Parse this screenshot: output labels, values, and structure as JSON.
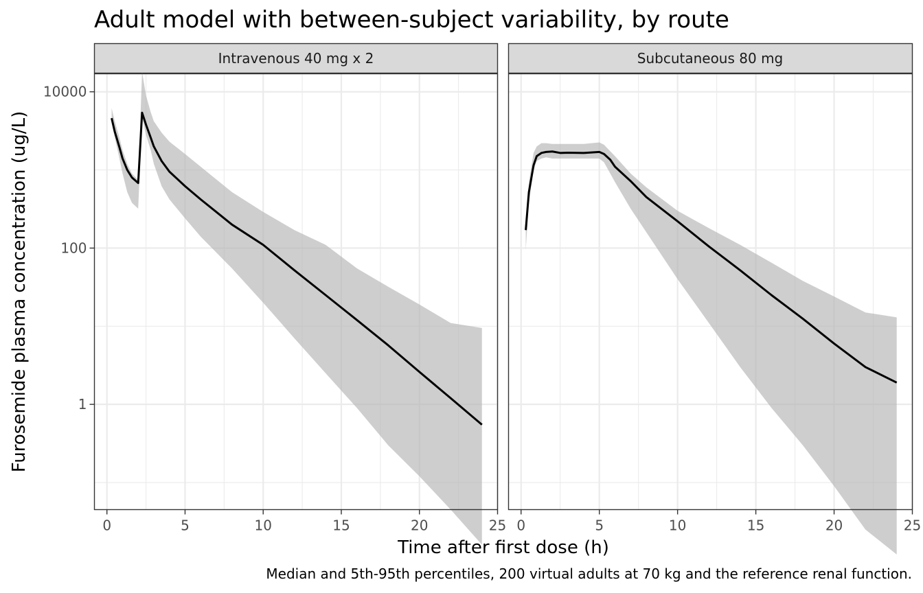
{
  "chart_data": {
    "type": "line",
    "title": "Adult model with between-subject variability, by route",
    "xlabel": "Time after first dose (h)",
    "ylabel": "Furosemide plasma concentration (ug/L)",
    "caption": "Median and 5th-95th percentiles, 200 virtual adults at 70 kg and the reference renal function.",
    "x_scale": "linear",
    "y_scale": "log10",
    "xlim": [
      -0.8,
      25
    ],
    "ylim": [
      0.045,
      17000
    ],
    "x_ticks": [
      0,
      5,
      10,
      15,
      20,
      25
    ],
    "x_tick_labels": [
      "0",
      "5",
      "10",
      "15",
      "20",
      "25"
    ],
    "y_ticks": [
      1,
      100,
      10000
    ],
    "y_tick_labels": [
      "1",
      "100",
      "10000"
    ],
    "grid": true,
    "panels": [
      {
        "strip": "Intravenous 40 mg x 2",
        "series": [
          {
            "type": "ribbon",
            "x": [
              0.3,
              0.5,
              0.8,
              1.0,
              1.3,
              1.6,
              2.0,
              2.25,
              2.5,
              2.8,
              3.0,
              3.5,
              4.0,
              5.0,
              6.0,
              8.0,
              10.0,
              12.0,
              14.0,
              16.0,
              18.0,
              20.0,
              22.0,
              24.0
            ],
            "lower": [
              4000,
              2600,
              1400,
              900,
              520,
              380,
              320,
              4800,
              2800,
              1800,
              1200,
              620,
              420,
              240,
              140,
              55,
              20,
              7,
              2.5,
              0.9,
              0.3,
              0.12,
              0.045,
              0.016
            ],
            "upper": [
              6200,
              4200,
              2600,
              1800,
              1200,
              900,
              750,
              18000,
              9000,
              5500,
              4200,
              3000,
              2300,
              1600,
              1100,
              520,
              290,
              170,
              110,
              55,
              32,
              19,
              11,
              9.5
            ]
          },
          {
            "type": "line",
            "name": "median",
            "x": [
              0.3,
              0.5,
              0.8,
              1.0,
              1.3,
              1.6,
              2.0,
              2.25,
              2.5,
              2.8,
              3.0,
              3.5,
              4.0,
              5.0,
              6.0,
              7.0,
              8.0,
              10.0,
              12.0,
              14.0,
              16.0,
              18.0,
              20.0,
              22.0,
              24.0
            ],
            "values": [
              4600,
              3100,
              1950,
              1400,
              1000,
              800,
              680,
              5400,
              3800,
              2600,
              2000,
              1300,
              950,
              620,
              420,
              290,
              200,
              110,
              52,
              25,
              12,
              5.7,
              2.6,
              1.2,
              0.55
            ]
          }
        ]
      },
      {
        "strip": "Subcutaneous 80 mg",
        "series": [
          {
            "type": "ribbon",
            "x": [
              0.3,
              0.5,
              0.8,
              1.0,
              1.3,
              1.6,
              2.0,
              3.0,
              4.0,
              5.0,
              5.3,
              6.0,
              7.0,
              8.0,
              10.0,
              12.0,
              14.0,
              16.0,
              18.0,
              20.0,
              22.0,
              24.0
            ],
            "lower": [
              95,
              380,
              1000,
              1300,
              1400,
              1450,
              1400,
              1400,
              1400,
              1400,
              1250,
              700,
              320,
              160,
              40,
              11,
              3,
              0.9,
              0.3,
              0.09,
              0.025,
              0.012
            ],
            "upper": [
              175,
              700,
              1650,
              2000,
              2200,
              2200,
              2150,
              2150,
              2150,
              2250,
              2100,
              1500,
              900,
              600,
              300,
              180,
              110,
              65,
              38,
              24,
              15,
              13
            ]
          },
          {
            "type": "line",
            "name": "median",
            "x": [
              0.3,
              0.5,
              0.8,
              1.0,
              1.3,
              1.6,
              2.0,
              2.5,
              3.0,
              4.0,
              5.0,
              5.3,
              5.7,
              6.0,
              7.0,
              8.0,
              10.0,
              12.0,
              14.0,
              16.0,
              18.0,
              20.0,
              22.0,
              24.0
            ],
            "values": [
              170,
              520,
              1150,
              1500,
              1650,
              1700,
              1720,
              1650,
              1660,
              1650,
              1700,
              1600,
              1350,
              1100,
              720,
              450,
              220,
              105,
              52,
              25,
              12.5,
              6,
              3,
              1.9
            ]
          }
        ]
      }
    ]
  }
}
